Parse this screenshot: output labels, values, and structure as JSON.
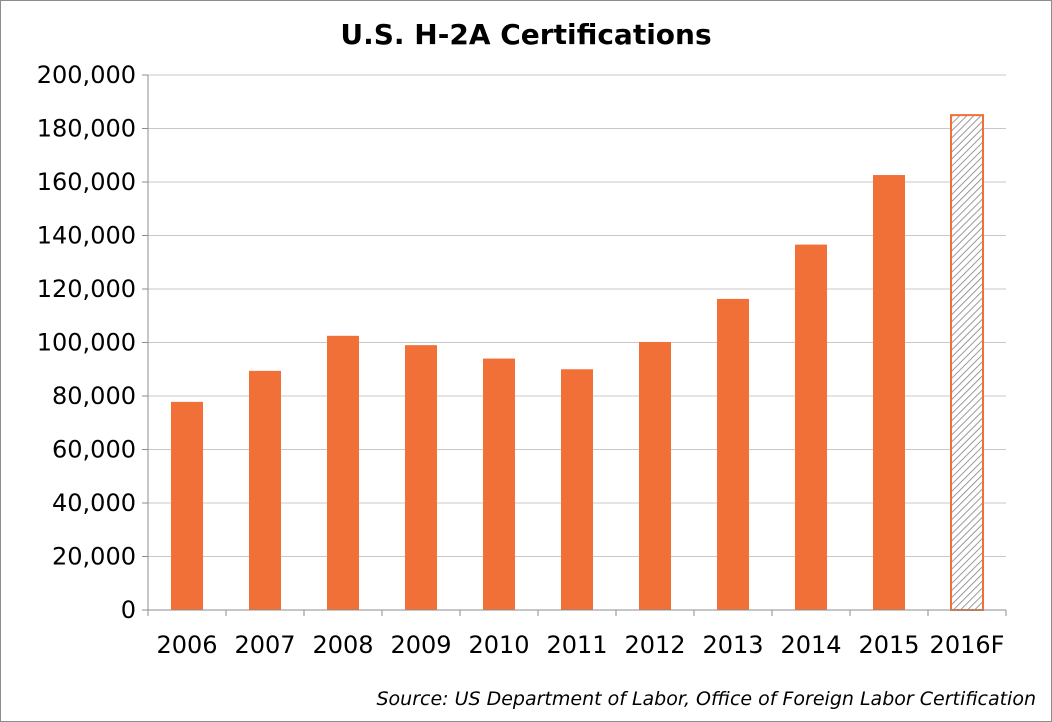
{
  "chart_data": {
    "type": "bar",
    "title": "U.S. H-2A Certifications",
    "xlabel": "",
    "ylabel": "",
    "categories": [
      "2006",
      "2007",
      "2008",
      "2009",
      "2010",
      "2011",
      "2012",
      "2013",
      "2014",
      "2015",
      "2016F"
    ],
    "values": [
      77800,
      89400,
      102500,
      99000,
      94000,
      90000,
      100200,
      116300,
      136600,
      162600,
      185000
    ],
    "forecast": [
      false,
      false,
      false,
      false,
      false,
      false,
      false,
      false,
      false,
      false,
      true
    ],
    "ylim": [
      0,
      200000
    ],
    "yticks": [
      0,
      20000,
      40000,
      60000,
      80000,
      100000,
      120000,
      140000,
      160000,
      180000,
      200000
    ],
    "ytick_labels": [
      "0",
      "20,000",
      "40,000",
      "60,000",
      "80,000",
      "100,000",
      "120,000",
      "140,000",
      "160,000",
      "180,000",
      "200,000"
    ],
    "grid": true,
    "colors": {
      "bar": "#f07038",
      "forecast_stroke": "#f07038",
      "forecast_hatch": "#808080",
      "grid": "#c8c8c8",
      "axis": "#8c8c8c"
    }
  },
  "source_note": "Source: US Department of Labor, Office of Foreign Labor Certification"
}
